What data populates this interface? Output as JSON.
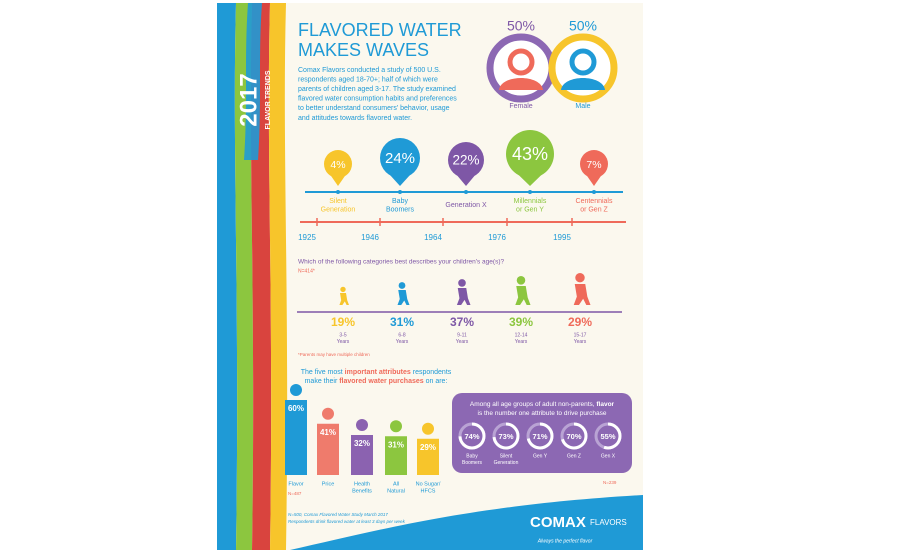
{
  "sidebar": {
    "year": "2017",
    "label": "FLAVOR TRENDS"
  },
  "header": {
    "title": [
      "FLAVORED WATER",
      "MAKES WAVES"
    ],
    "intro": [
      "Comax Flavors conducted a study of 500 U.S.",
      "respondents aged 18-70+; half of which were",
      "parents of children aged 3-17. The study examined",
      "flavored water consumption habits and preferences",
      "to better understand consumers' behavior, usage",
      "and attitudes towards flavored water."
    ]
  },
  "gender": [
    {
      "percent": "50%",
      "label": "Female"
    },
    {
      "percent": "50%",
      "label": "Male"
    }
  ],
  "generations": {
    "groups": [
      {
        "percent": "4%",
        "label": [
          "Silent",
          "Generation"
        ]
      },
      {
        "percent": "24%",
        "label": [
          "Baby",
          "Boomers"
        ]
      },
      {
        "percent": "22%",
        "label": [
          "Generation X"
        ]
      },
      {
        "percent": "43%",
        "label": [
          "Millennials",
          "or Gen Y"
        ]
      },
      {
        "percent": "7%",
        "label": [
          "Centennials",
          "or Gen Z"
        ]
      }
    ],
    "years": [
      "1925",
      "1946",
      "1964",
      "1976",
      "1995"
    ]
  },
  "children": {
    "question": "Which of the following categories best describes your children's age(s)?",
    "sample": "N=414*",
    "groups": [
      {
        "percent": "19%",
        "label": [
          "3-5",
          "Years"
        ]
      },
      {
        "percent": "31%",
        "label": [
          "6-8",
          "Years"
        ]
      },
      {
        "percent": "37%",
        "label": [
          "9-11",
          "Years"
        ]
      },
      {
        "percent": "39%",
        "label": [
          "12-14",
          "Years"
        ]
      },
      {
        "percent": "29%",
        "label": [
          "15-17",
          "Years"
        ]
      }
    ],
    "note": "*Parents may have multiple children"
  },
  "attributes": {
    "heading": [
      [
        "The five most ",
        "important attributes",
        " respondents"
      ],
      [
        "make their ",
        "flavored water purchases",
        " on are:"
      ]
    ],
    "items": [
      {
        "name": [
          "Flavor"
        ],
        "value": 60,
        "value_label": "60%"
      },
      {
        "name": [
          "Price"
        ],
        "value": 41,
        "value_label": "41%"
      },
      {
        "name": [
          "Health",
          "Benefits"
        ],
        "value": 32,
        "value_label": "32%"
      },
      {
        "name": [
          "All",
          "Natural"
        ],
        "value": 31,
        "value_label": "31%"
      },
      {
        "name": [
          "No Sugar/",
          "HFCS"
        ],
        "value": 29,
        "value_label": "29%"
      }
    ],
    "sample": "N=487"
  },
  "non_parents": {
    "heading": [
      [
        "Among all age groups of adult non-parents, ",
        "flavor"
      ],
      [
        "is the number one attribute to drive purchase"
      ]
    ],
    "items": [
      {
        "value": 74,
        "value_label": "74%",
        "label": [
          "Baby",
          "Boomers"
        ]
      },
      {
        "value": 73,
        "value_label": "73%",
        "label": [
          "Silent",
          "Generation"
        ]
      },
      {
        "value": 71,
        "value_label": "71%",
        "label": [
          "Gen Y"
        ]
      },
      {
        "value": 70,
        "value_label": "70%",
        "label": [
          "Gen Z"
        ]
      },
      {
        "value": 55,
        "value_label": "55%",
        "label": [
          "Gen X"
        ]
      }
    ],
    "sample": "N=239"
  },
  "footer": {
    "notes": [
      "N=500, Comax Flavored Water Study March 2017",
      "Respondents drink flavored water at least 3 days per week"
    ],
    "logo": {
      "name": "COMAX",
      "suffix": "FLAVORS",
      "tagline": "Always the perfect flavor"
    }
  }
}
